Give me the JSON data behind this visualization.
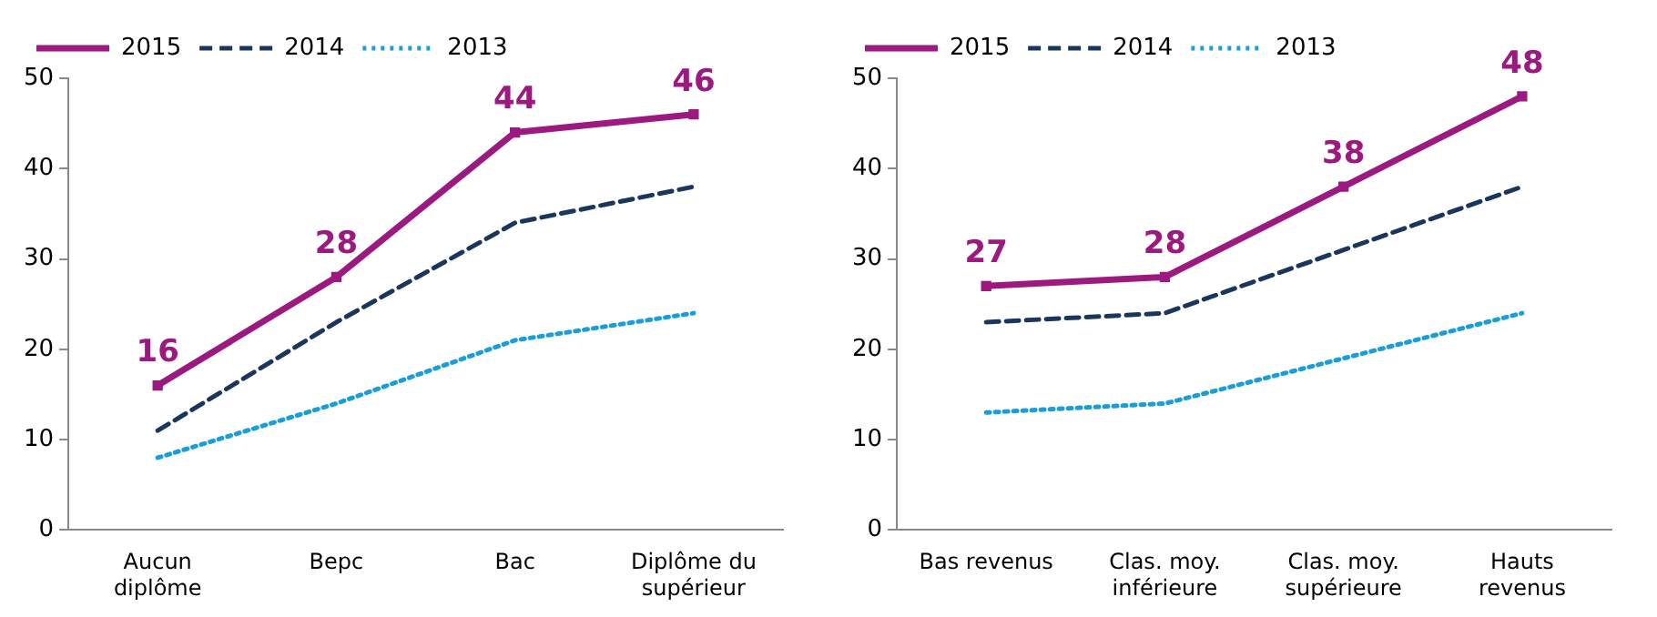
{
  "chart_data": [
    {
      "type": "line",
      "categories": [
        "Aucun diplôme",
        "Bepc",
        "Bac",
        "Diplôme du supérieur"
      ],
      "ylim": [
        0,
        50
      ],
      "yticks": [
        0,
        10,
        20,
        30,
        40,
        50
      ],
      "grid": false,
      "legend": "top left",
      "series": [
        {
          "name": "2015",
          "color": "#9c1a7f",
          "values": [
            16,
            28,
            44,
            46
          ],
          "marker": "square",
          "line_style": "solid",
          "value_labels": [
            "16",
            "28",
            "44",
            "46"
          ]
        },
        {
          "name": "2014",
          "color": "#1b365d",
          "values": [
            11,
            23,
            34,
            38
          ],
          "marker": "none",
          "line_style": "dashed"
        },
        {
          "name": "2013",
          "color": "#1a9ed9",
          "values": [
            8,
            14,
            21,
            24
          ],
          "marker": "none",
          "line_style": "dotted"
        }
      ]
    },
    {
      "type": "line",
      "categories": [
        "Bas revenus",
        "Clas. moy. inférieure",
        "Clas. moy. supérieure",
        "Hauts revenus"
      ],
      "ylim": [
        0,
        50
      ],
      "yticks": [
        0,
        10,
        20,
        30,
        40,
        50
      ],
      "grid": false,
      "legend": "top left",
      "series": [
        {
          "name": "2015",
          "color": "#9c1a7f",
          "values": [
            27,
            28,
            38,
            48
          ],
          "marker": "square",
          "line_style": "solid",
          "value_labels": [
            "27",
            "28",
            "38",
            "48"
          ]
        },
        {
          "name": "2014",
          "color": "#1b365d",
          "values": [
            23,
            24,
            31,
            38
          ],
          "marker": "none",
          "line_style": "dashed"
        },
        {
          "name": "2013",
          "color": "#1a9ed9",
          "values": [
            13,
            14,
            19,
            24
          ],
          "marker": "none",
          "line_style": "dotted"
        }
      ]
    }
  ]
}
